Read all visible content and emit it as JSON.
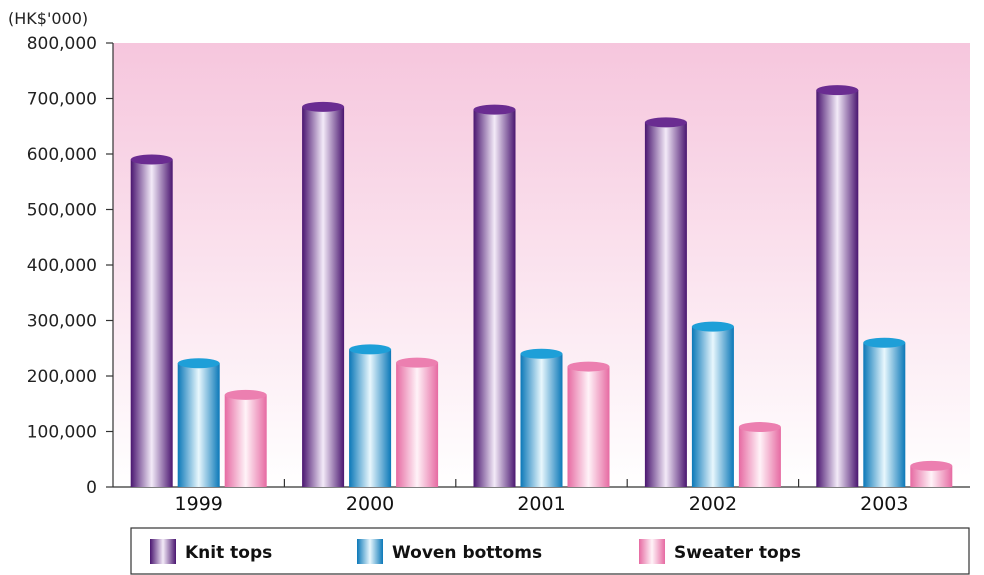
{
  "chart_data": {
    "type": "bar",
    "unit_label": "(HK$'000)",
    "categories": [
      "1999",
      "2000",
      "2001",
      "2002",
      "2003"
    ],
    "series": [
      {
        "name": "Knit tops",
        "values": [
          590000,
          685000,
          680000,
          657000,
          715000
        ],
        "color": "#6a2c91"
      },
      {
        "name": "Woven bottoms",
        "values": [
          223000,
          248000,
          240000,
          289000,
          260000
        ],
        "color": "#1e9fd8"
      },
      {
        "name": "Sweater tops",
        "values": [
          166000,
          224000,
          217000,
          108000,
          38000
        ],
        "color": "#ec7fb0"
      }
    ],
    "ylim": [
      0,
      800000
    ],
    "yticks": [
      "0",
      "100,000",
      "200,000",
      "300,000",
      "400,000",
      "500,000",
      "600,000",
      "700,000",
      "800,000"
    ],
    "grid": false,
    "legend_position": "bottom"
  }
}
